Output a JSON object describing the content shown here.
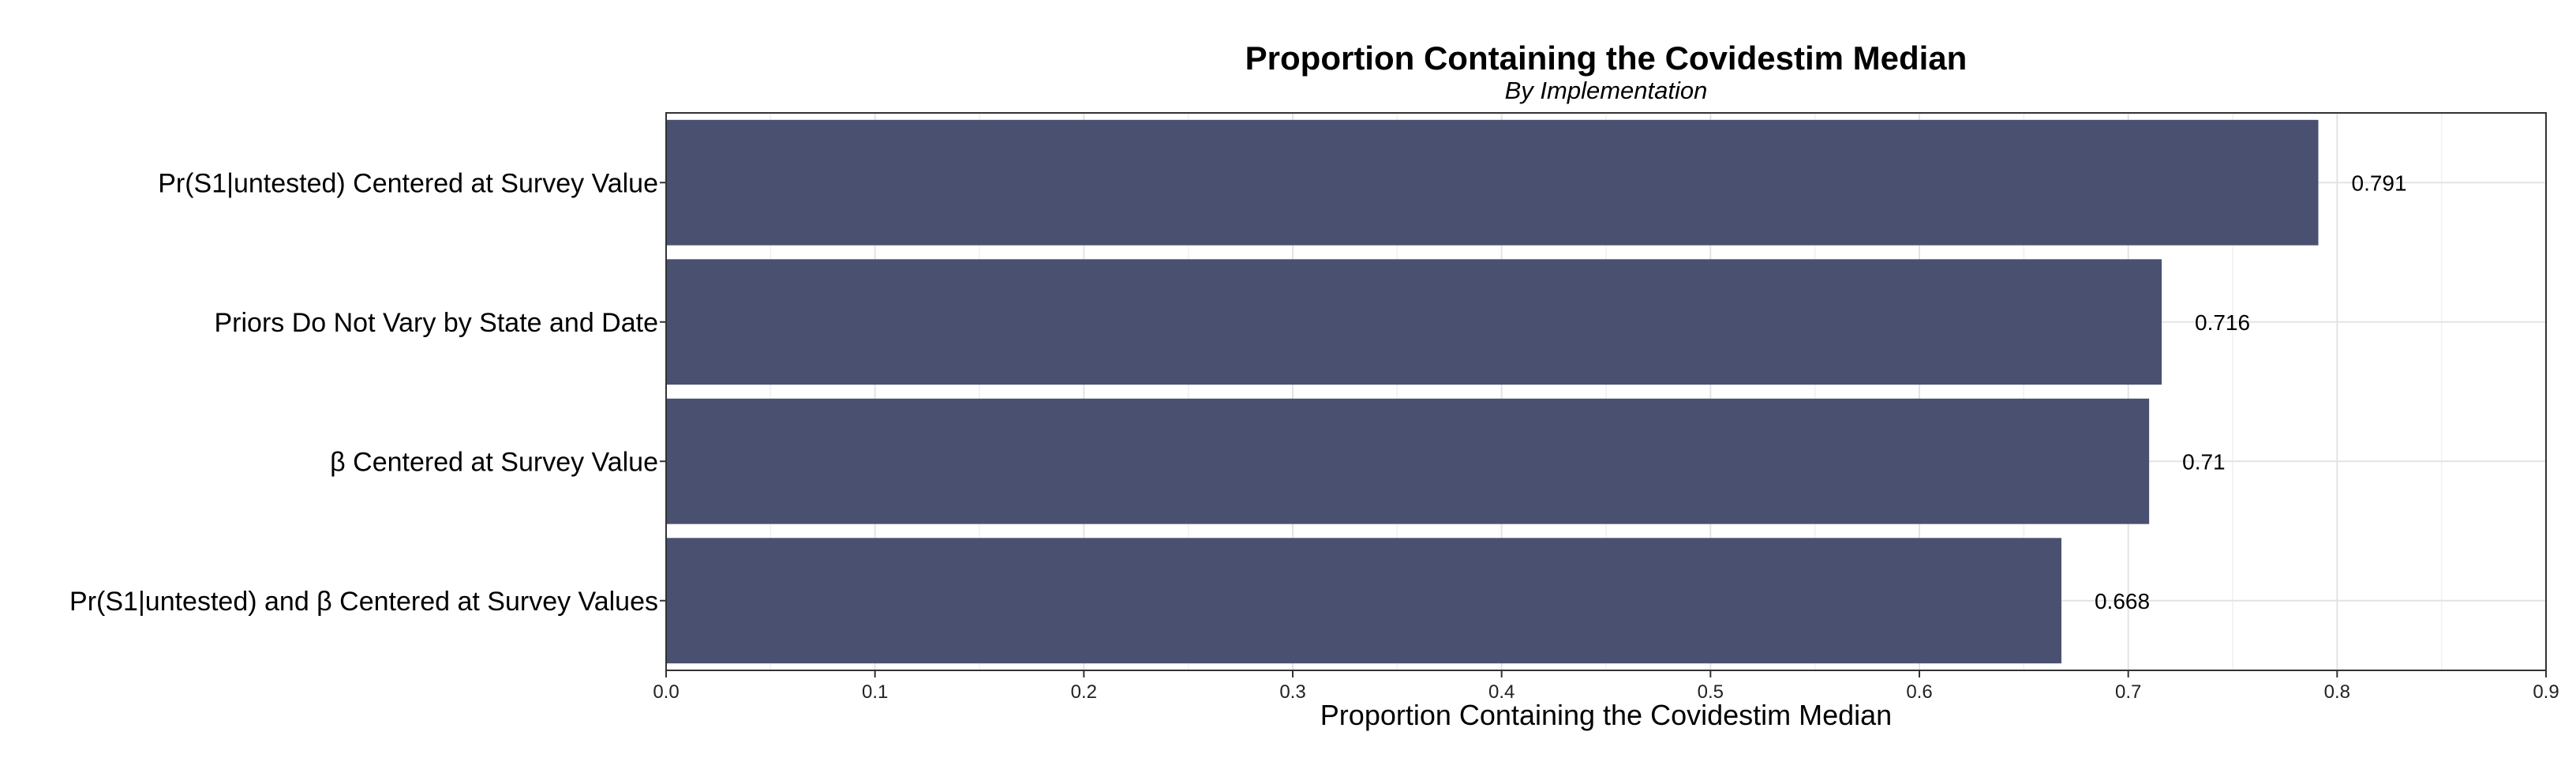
{
  "chart_data": {
    "type": "bar",
    "orientation": "horizontal",
    "title": "Proportion Containing the Covidestim Median",
    "subtitle": "By Implementation",
    "xlabel": "Proportion Containing the Covidestim Median",
    "ylabel": "",
    "xlim": [
      0,
      0.9
    ],
    "xticks": [
      0.0,
      0.1,
      0.2,
      0.3,
      0.4,
      0.5,
      0.6,
      0.7,
      0.8,
      0.9
    ],
    "xtick_labels": [
      "0.0",
      "0.1",
      "0.2",
      "0.3",
      "0.4",
      "0.5",
      "0.6",
      "0.7",
      "0.8",
      "0.9"
    ],
    "grid": true,
    "categories": [
      "Pr(S1|untested) Centered at Survey Value",
      "Priors Do Not Vary by State and Date",
      "β Centered at Survey Value",
      "Pr(S1|untested) and β Centered at Survey Values"
    ],
    "values": [
      0.791,
      0.716,
      0.71,
      0.668
    ],
    "value_labels": [
      "0.791",
      "0.716",
      "0.71",
      "0.668"
    ],
    "bar_color": "#4a5070"
  }
}
